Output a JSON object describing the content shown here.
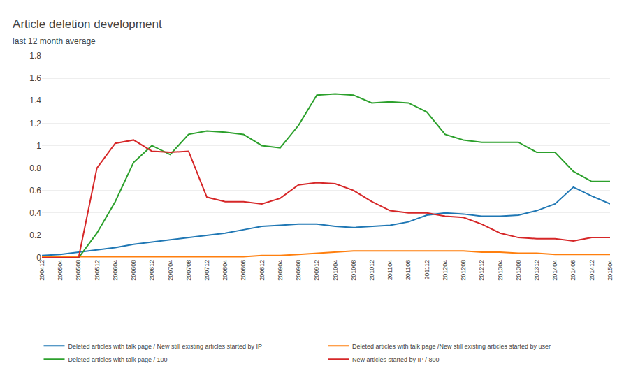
{
  "chart_data": {
    "type": "line",
    "title": "Article deletion development",
    "subtitle": "last 12 month average",
    "categories": [
      "200412",
      "200504",
      "200508",
      "200512",
      "200604",
      "200608",
      "200612",
      "200704",
      "200708",
      "200712",
      "200804",
      "200808",
      "200812",
      "200904",
      "200908",
      "200912",
      "201004",
      "201008",
      "201012",
      "201104",
      "201108",
      "201112",
      "201204",
      "201208",
      "201212",
      "201304",
      "201308",
      "201312",
      "201404",
      "201408",
      "201412",
      "201504"
    ],
    "series": [
      {
        "name": "Deleted articles with talk page / New still existing articles started by IP",
        "values": [
          0.02,
          0.03,
          0.05,
          0.07,
          0.09,
          0.12,
          0.14,
          0.16,
          0.18,
          0.2,
          0.22,
          0.25,
          0.28,
          0.29,
          0.3,
          0.3,
          0.28,
          0.27,
          0.28,
          0.29,
          0.32,
          0.38,
          0.4,
          0.39,
          0.37,
          0.37,
          0.38,
          0.42,
          0.48,
          0.63,
          0.55,
          0.48
        ]
      },
      {
        "name": "Deleted articles with talk page /New still existing articles started by user",
        "values": [
          0.01,
          0.01,
          0.01,
          0.01,
          0.01,
          0.01,
          0.01,
          0.01,
          0.01,
          0.01,
          0.01,
          0.01,
          0.02,
          0.02,
          0.03,
          0.04,
          0.05,
          0.06,
          0.06,
          0.06,
          0.06,
          0.06,
          0.06,
          0.06,
          0.05,
          0.05,
          0.04,
          0.04,
          0.03,
          0.03,
          0.03,
          0.03
        ]
      },
      {
        "name": "Deleted articles with talk page / 100",
        "values": [
          0.0,
          0.0,
          0.0,
          0.22,
          0.5,
          0.85,
          1.0,
          0.92,
          1.1,
          1.13,
          1.12,
          1.1,
          1.0,
          0.98,
          1.18,
          1.45,
          1.46,
          1.45,
          1.38,
          1.39,
          1.38,
          1.3,
          1.1,
          1.05,
          1.03,
          1.03,
          1.03,
          0.94,
          0.94,
          0.77,
          0.68,
          0.68
        ]
      },
      {
        "name": "New articles started by IP / 800",
        "values": [
          0.0,
          0.0,
          0.0,
          0.8,
          1.02,
          1.05,
          0.95,
          0.94,
          0.95,
          0.54,
          0.5,
          0.5,
          0.48,
          0.53,
          0.65,
          0.67,
          0.66,
          0.6,
          0.5,
          0.42,
          0.4,
          0.4,
          0.37,
          0.36,
          0.3,
          0.22,
          0.18,
          0.17,
          0.17,
          0.15,
          0.18,
          0.18
        ]
      }
    ],
    "ylim": [
      0,
      1.8
    ],
    "yticks": [
      0,
      0.2,
      0.4,
      0.6,
      0.8,
      1.0,
      1.2,
      1.4,
      1.6,
      1.8
    ],
    "grid": true,
    "legend": "bottom"
  }
}
